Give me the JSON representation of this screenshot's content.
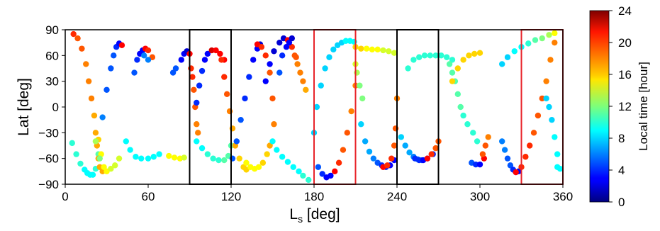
{
  "chart_data": {
    "type": "scatter",
    "xlabel": "L",
    "xlabel_sub": "s",
    "xlabel_unit": " [deg]",
    "ylabel": "Lat [deg]",
    "xlim": [
      0,
      360
    ],
    "ylim": [
      -90,
      90
    ],
    "xticks": [
      0,
      60,
      120,
      180,
      240,
      300,
      360
    ],
    "yticks": [
      90,
      60,
      30,
      0,
      -30,
      -60,
      -90
    ],
    "xtick_labels": [
      "0",
      "60",
      "120",
      "180",
      "240",
      "300",
      "360"
    ],
    "ytick_labels": [
      "90",
      "60",
      "30",
      "0",
      "−30",
      "−60",
      "−90"
    ],
    "colorbar": {
      "label": "Local time [hour]",
      "range": [
        0,
        24
      ],
      "ticks": [
        0,
        4,
        8,
        12,
        16,
        20,
        24
      ],
      "tick_labels": [
        "0",
        "4",
        "8",
        "12",
        "16",
        "20",
        "24"
      ],
      "colormap": "jet"
    },
    "highlight_boxes": [
      {
        "x_range": [
          90,
          120
        ],
        "color": "#000000"
      },
      {
        "x_range": [
          180,
          210
        ],
        "color": "#e8242a"
      },
      {
        "x_range": [
          240,
          270
        ],
        "color": "#000000"
      },
      {
        "x_range": [
          330,
          360
        ],
        "color": "#e8242a"
      }
    ],
    "tracks": [
      {
        "x": [
          5,
          8,
          11,
          14,
          16,
          18,
          20,
          22,
          24
        ],
        "y": [
          -42,
          -55,
          -66,
          -73,
          -77,
          -79,
          -79,
          -72,
          -55
        ],
        "local_time": [
          10,
          10,
          10,
          9,
          9,
          9,
          9,
          10,
          11
        ]
      },
      {
        "x": [
          6,
          9,
          12,
          15,
          17,
          19,
          21,
          22,
          23,
          24,
          25,
          27
        ],
        "y": [
          85,
          80,
          68,
          50,
          30,
          10,
          -10,
          -30,
          -45,
          -60,
          -70,
          -75
        ],
        "local_time": [
          20,
          19,
          19,
          18,
          18,
          18,
          17,
          17,
          17,
          17,
          17,
          17
        ]
      },
      {
        "x": [
          24,
          26,
          28,
          30,
          33,
          36,
          39
        ],
        "y": [
          -38,
          -55,
          -70,
          -75,
          -72,
          -68,
          -60
        ],
        "local_time": [
          16,
          15,
          15,
          15,
          14,
          14,
          14
        ]
      },
      {
        "x": [
          22,
          25,
          27,
          30
        ],
        "y": [
          -40,
          -60,
          -12,
          20
        ],
        "local_time": [
          13,
          12,
          6,
          5
        ]
      },
      {
        "x": [
          33,
          35,
          37,
          39,
          41
        ],
        "y": [
          45,
          60,
          70,
          74,
          72
        ],
        "local_time": [
          5,
          5,
          4,
          3,
          21
        ]
      },
      {
        "x": [
          44,
          47,
          51,
          55,
          60,
          64,
          68
        ],
        "y": [
          -40,
          -50,
          -58,
          -60,
          -60,
          -58,
          -55
        ],
        "local_time": [
          9,
          9,
          9,
          9,
          9,
          9,
          9
        ]
      },
      {
        "x": [
          50,
          52,
          54,
          56,
          58,
          60,
          63
        ],
        "y": [
          40,
          55,
          62,
          66,
          68,
          66,
          58
        ],
        "local_time": [
          5,
          4,
          3,
          3,
          21,
          20,
          19
        ]
      },
      {
        "x": [
          57,
          60
        ],
        "y": [
          60,
          55
        ],
        "local_time": [
          6,
          6
        ]
      },
      {
        "x": [
          75,
          79,
          83,
          86
        ],
        "y": [
          -57,
          -59,
          -60,
          -59
        ],
        "local_time": [
          15,
          15,
          15,
          14
        ]
      },
      {
        "x": [
          78,
          80
        ],
        "y": [
          40,
          45
        ],
        "local_time": [
          5,
          5
        ]
      },
      {
        "x": [
          84,
          86,
          88,
          90
        ],
        "y": [
          55,
          62,
          65,
          62
        ],
        "local_time": [
          3,
          3,
          2,
          21
        ]
      },
      {
        "x": [
          91,
          92,
          93,
          94,
          95,
          96
        ],
        "y": [
          45,
          35,
          20,
          0,
          -20,
          -30
        ],
        "local_time": [
          20,
          20,
          19,
          19,
          18,
          18
        ]
      },
      {
        "x": [
          95,
          99,
          103,
          107,
          111,
          115,
          118,
          120
        ],
        "y": [
          -40,
          -48,
          -55,
          -60,
          -62,
          -62,
          -57,
          -45
        ],
        "local_time": [
          9,
          9,
          10,
          10,
          10,
          11,
          11,
          11
        ]
      },
      {
        "x": [
          95,
          97,
          99,
          101,
          103,
          106,
          109,
          112,
          115
        ],
        "y": [
          5,
          25,
          42,
          55,
          62,
          66,
          66,
          62,
          55
        ],
        "local_time": [
          4,
          4,
          4,
          3,
          3,
          22,
          21,
          21,
          21
        ]
      },
      {
        "x": [
          113,
          115,
          117,
          119,
          121,
          123,
          126,
          129,
          131
        ],
        "y": [
          55,
          35,
          15,
          -5,
          -25,
          -45,
          -60,
          -70,
          -73
        ],
        "local_time": [
          20,
          20,
          19,
          18,
          17,
          17,
          16,
          16,
          16
        ]
      },
      {
        "x": [
          121,
          124,
          127,
          130,
          133,
          136,
          139,
          141
        ],
        "y": [
          -60,
          -40,
          -15,
          10,
          35,
          55,
          68,
          73
        ],
        "local_time": [
          5,
          5,
          5,
          4,
          4,
          3,
          3,
          2
        ]
      },
      {
        "x": [
          131,
          134,
          137,
          140,
          143,
          146,
          148
        ],
        "y": [
          -65,
          -70,
          -72,
          -70,
          -65,
          -55,
          -45
        ],
        "local_time": [
          15,
          15,
          15,
          15,
          16,
          16,
          17
        ]
      },
      {
        "x": [
          139,
          142,
          145,
          148,
          150,
          151
        ],
        "y": [
          73,
          70,
          60,
          40,
          10,
          -20
        ],
        "local_time": [
          21,
          20,
          20,
          19,
          19,
          18
        ]
      },
      {
        "x": [
          145,
          148,
          151,
          155,
          158,
          161,
          164,
          167
        ],
        "y": [
          30,
          50,
          65,
          75,
          80,
          78,
          70,
          58
        ],
        "local_time": [
          3,
          3,
          2,
          2,
          2,
          21,
          20,
          19
        ]
      },
      {
        "x": [
          150,
          153,
          157,
          161,
          165,
          169,
          172,
          176
        ],
        "y": [
          -40,
          -50,
          -58,
          -64,
          -70,
          -75,
          -80,
          -85
        ],
        "local_time": [
          9,
          9,
          9,
          9,
          9,
          9,
          10,
          10
        ]
      },
      {
        "x": [
          155,
          157,
          160,
          162,
          164
        ],
        "y": [
          40,
          60,
          70,
          75,
          80
        ],
        "local_time": [
          5,
          4,
          3,
          3,
          2
        ]
      },
      {
        "x": [
          166,
          168,
          170,
          172,
          174
        ],
        "y": [
          60,
          50,
          40,
          30,
          20
        ],
        "local_time": [
          19,
          18,
          18,
          18,
          17
        ]
      },
      {
        "x": [
          180,
          182,
          185,
          188,
          191,
          194,
          197,
          200,
          203,
          206,
          209
        ],
        "y": [
          -30,
          0,
          25,
          45,
          58,
          67,
          72,
          75,
          77,
          77,
          76
        ],
        "local_time": [
          8,
          8,
          8,
          8,
          8,
          8,
          8,
          8,
          9,
          9,
          9
        ]
      },
      {
        "x": [
          183,
          186,
          189,
          192,
          195,
          198,
          201,
          204,
          207,
          210
        ],
        "y": [
          -70,
          -78,
          -82,
          -80,
          -75,
          -65,
          -50,
          -30,
          -5,
          25
        ],
        "local_time": [
          5,
          4,
          3,
          3,
          21,
          20,
          19,
          19,
          18,
          18
        ]
      },
      {
        "x": [
          210,
          214,
          218,
          222,
          226,
          230,
          234,
          238
        ],
        "y": [
          70,
          68,
          68,
          67,
          67,
          66,
          65,
          63
        ],
        "local_time": [
          16,
          16,
          15,
          15,
          15,
          14,
          14,
          14
        ]
      },
      {
        "x": [
          210,
          211,
          213,
          215
        ],
        "y": [
          50,
          40,
          25,
          10
        ],
        "local_time": [
          14,
          13,
          12,
          12
        ]
      },
      {
        "x": [
          214,
          217,
          220,
          223,
          226,
          229,
          232,
          235,
          238
        ],
        "y": [
          -20,
          -40,
          -52,
          -60,
          -65,
          -68,
          -70,
          -68,
          -62
        ],
        "local_time": [
          8,
          7,
          7,
          6,
          5,
          4,
          4,
          3,
          3
        ]
      },
      {
        "x": [
          230,
          233,
          236,
          238,
          239,
          240
        ],
        "y": [
          -70,
          -68,
          -60,
          -45,
          -25,
          10
        ],
        "local_time": [
          21,
          20,
          20,
          19,
          19,
          18
        ]
      },
      {
        "x": [
          243,
          246,
          249,
          252,
          255,
          258,
          262,
          266
        ],
        "y": [
          -35,
          -45,
          -53,
          -58,
          -61,
          -62,
          -60,
          -55
        ],
        "local_time": [
          8,
          7,
          7,
          6,
          6,
          5,
          5,
          4
        ]
      },
      {
        "x": [
          253,
          256,
          259,
          262,
          265,
          268,
          270
        ],
        "y": [
          -60,
          -62,
          -62,
          -60,
          -55,
          -48,
          -40
        ],
        "local_time": [
          4,
          4,
          3,
          21,
          20,
          19,
          19
        ]
      },
      {
        "x": [
          248,
          252,
          256,
          260,
          264,
          268,
          272,
          276,
          280
        ],
        "y": [
          45,
          55,
          58,
          60,
          60,
          60,
          60,
          58,
          55
        ],
        "local_time": [
          10,
          10,
          10,
          10,
          10,
          10,
          10,
          10,
          10
        ]
      },
      {
        "x": [
          278,
          280,
          282,
          284,
          286,
          288,
          291,
          295,
          298
        ],
        "y": [
          50,
          40,
          30,
          15,
          0,
          -10,
          -20,
          -30,
          -40
        ],
        "local_time": [
          11,
          11,
          11,
          11,
          11,
          10,
          10,
          10,
          10
        ]
      },
      {
        "x": [
          280,
          284,
          288,
          292,
          296,
          300
        ],
        "y": [
          30,
          45,
          55,
          60,
          62,
          63
        ],
        "local_time": [
          16,
          16,
          16,
          16,
          16,
          16
        ]
      },
      {
        "x": [
          294,
          297,
          300,
          303
        ],
        "y": [
          -65,
          -67,
          -67,
          -60
        ],
        "local_time": [
          5,
          4,
          3,
          21
        ]
      },
      {
        "x": [
          302,
          304,
          306
        ],
        "y": [
          -55,
          -45,
          -35
        ],
        "local_time": [
          19,
          19,
          18
        ]
      },
      {
        "x": [
          316,
          318,
          320,
          322,
          324,
          326,
          328
        ],
        "y": [
          -40,
          -50,
          -60,
          -68,
          -73,
          -76,
          -75
        ],
        "local_time": [
          6,
          6,
          5,
          5,
          4,
          4,
          3
        ]
      },
      {
        "x": [
          326,
          330,
          333,
          336,
          339,
          342,
          345,
          348,
          351,
          354
        ],
        "y": [
          -76,
          -70,
          -58,
          -45,
          -30,
          -10,
          10,
          30,
          55,
          75
        ],
        "local_time": [
          21,
          20,
          20,
          20,
          19,
          19,
          19,
          18,
          18,
          18
        ]
      },
      {
        "x": [
          316,
          320,
          325,
          330,
          335,
          340,
          345,
          350,
          354
        ],
        "y": [
          50,
          58,
          65,
          70,
          74,
          78,
          80,
          84,
          86
        ],
        "local_time": [
          8,
          8,
          9,
          9,
          10,
          11,
          12,
          13,
          15
        ]
      },
      {
        "x": [
          348,
          350,
          352,
          354,
          356
        ],
        "y": [
          10,
          0,
          -15,
          -35,
          -55
        ],
        "local_time": [
          8,
          8,
          8,
          9,
          9
        ]
      },
      {
        "x": [
          356,
          358
        ],
        "y": [
          -70,
          -72
        ],
        "local_time": [
          9,
          9
        ]
      }
    ]
  }
}
